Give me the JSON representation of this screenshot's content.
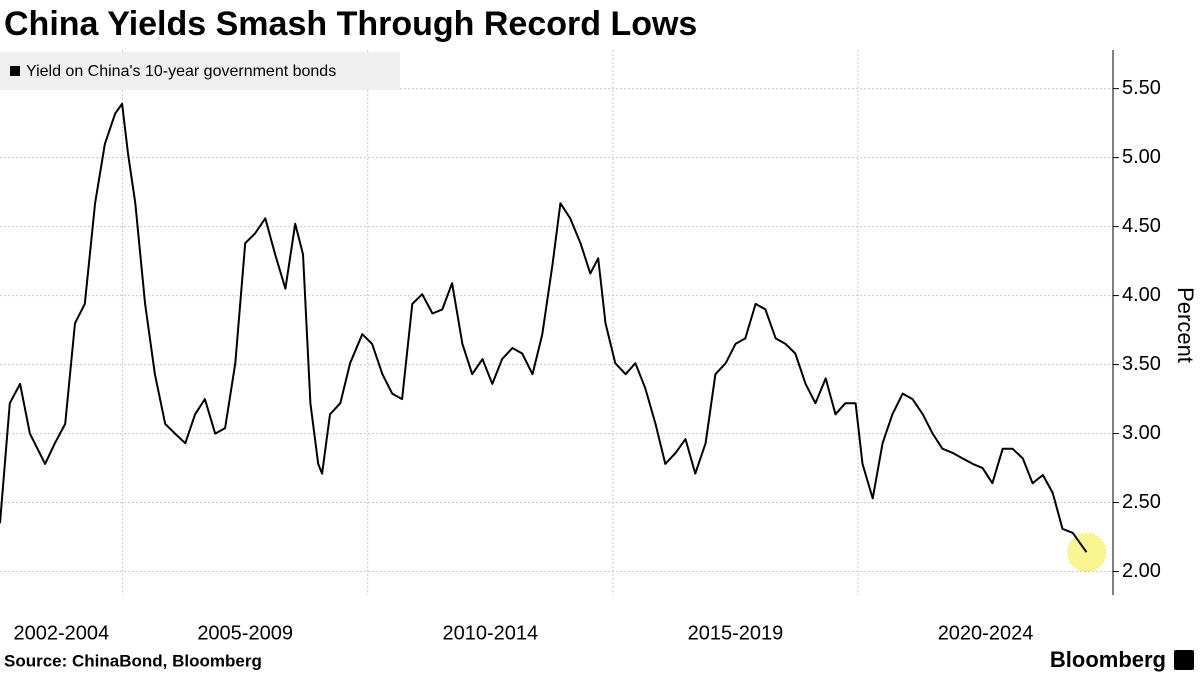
{
  "chart_data": {
    "type": "line",
    "title": "China Yields Smash Through Record Lows",
    "ylabel": "Percent",
    "source": "Source: ChinaBond, Bloomberg",
    "brand": "Bloomberg",
    "period_labels": [
      "2002-2004",
      "2005-2009",
      "2010-2014",
      "2015-2019",
      "2020-2024"
    ],
    "xlim": [
      2002.5,
      2025.2
    ],
    "xticks": [
      2005,
      2010,
      2015,
      2020
    ],
    "ylim": [
      1.83,
      5.78
    ],
    "yticks": [
      {
        "value": 2,
        "label": "2.00"
      },
      {
        "value": 2.5,
        "label": "2.50"
      },
      {
        "value": 3,
        "label": "3.00"
      },
      {
        "value": 3.5,
        "label": "3.50"
      },
      {
        "value": 4,
        "label": "4.00"
      },
      {
        "value": 4.5,
        "label": "4.50"
      },
      {
        "value": 5,
        "label": "5.00"
      },
      {
        "value": 5.5,
        "label": "5.50"
      }
    ],
    "grid": true,
    "highlight_color": "#f5f04a",
    "series": [
      {
        "name": "Yield on China's 10-year government bonds",
        "color": "#000000",
        "x": [
          2002.5,
          2002.7,
          2002.91,
          2003.11,
          2003.42,
          2003.62,
          2003.83,
          2004.03,
          2004.23,
          2004.44,
          2004.64,
          2004.85,
          2004.99,
          2005.11,
          2005.26,
          2005.46,
          2005.66,
          2005.87,
          2006.07,
          2006.28,
          2006.48,
          2006.68,
          2006.89,
          2007.09,
          2007.3,
          2007.5,
          2007.7,
          2007.91,
          2008.11,
          2008.32,
          2008.52,
          2008.68,
          2008.83,
          2008.99,
          2009.07,
          2009.23,
          2009.44,
          2009.64,
          2009.89,
          2010.09,
          2010.3,
          2010.5,
          2010.7,
          2010.91,
          2011.11,
          2011.32,
          2011.52,
          2011.72,
          2011.93,
          2012.13,
          2012.34,
          2012.54,
          2012.74,
          2012.95,
          2013.15,
          2013.36,
          2013.56,
          2013.77,
          2013.93,
          2014.13,
          2014.34,
          2014.54,
          2014.7,
          2014.85,
          2015.05,
          2015.26,
          2015.46,
          2015.66,
          2015.87,
          2016.07,
          2016.28,
          2016.48,
          2016.68,
          2016.89,
          2017.09,
          2017.3,
          2017.5,
          2017.7,
          2017.91,
          2018.11,
          2018.32,
          2018.52,
          2018.72,
          2018.93,
          2019.13,
          2019.34,
          2019.54,
          2019.74,
          2019.95,
          2020.09,
          2020.3,
          2020.5,
          2020.7,
          2020.91,
          2021.11,
          2021.32,
          2021.52,
          2021.72,
          2021.93,
          2022.13,
          2022.34,
          2022.54,
          2022.74,
          2022.95,
          2023.15,
          2023.36,
          2023.56,
          2023.77,
          2023.97,
          2024.17,
          2024.38,
          2024.54,
          2024.66
        ],
        "values": [
          2.35,
          3.22,
          3.36,
          3.0,
          2.78,
          2.93,
          3.07,
          3.8,
          3.94,
          4.67,
          5.1,
          5.32,
          5.39,
          5.03,
          4.67,
          3.94,
          3.43,
          3.07,
          3.0,
          2.93,
          3.14,
          3.25,
          3.0,
          3.04,
          3.51,
          4.38,
          4.45,
          4.56,
          4.3,
          4.05,
          4.52,
          4.3,
          3.22,
          2.78,
          2.71,
          3.14,
          3.22,
          3.51,
          3.72,
          3.65,
          3.43,
          3.29,
          3.25,
          3.94,
          4.01,
          3.87,
          3.9,
          4.09,
          3.65,
          3.43,
          3.54,
          3.36,
          3.54,
          3.62,
          3.58,
          3.43,
          3.72,
          4.23,
          4.67,
          4.56,
          4.38,
          4.16,
          4.27,
          3.8,
          3.51,
          3.43,
          3.51,
          3.33,
          3.07,
          2.78,
          2.86,
          2.96,
          2.71,
          2.93,
          3.43,
          3.51,
          3.65,
          3.69,
          3.94,
          3.9,
          3.69,
          3.65,
          3.58,
          3.36,
          3.22,
          3.4,
          3.14,
          3.22,
          3.22,
          2.78,
          2.53,
          2.93,
          3.14,
          3.29,
          3.25,
          3.14,
          3.0,
          2.89,
          2.86,
          2.82,
          2.78,
          2.75,
          2.64,
          2.89,
          2.89,
          2.82,
          2.64,
          2.7,
          2.57,
          2.31,
          2.28,
          2.2,
          2.14
        ]
      }
    ]
  }
}
